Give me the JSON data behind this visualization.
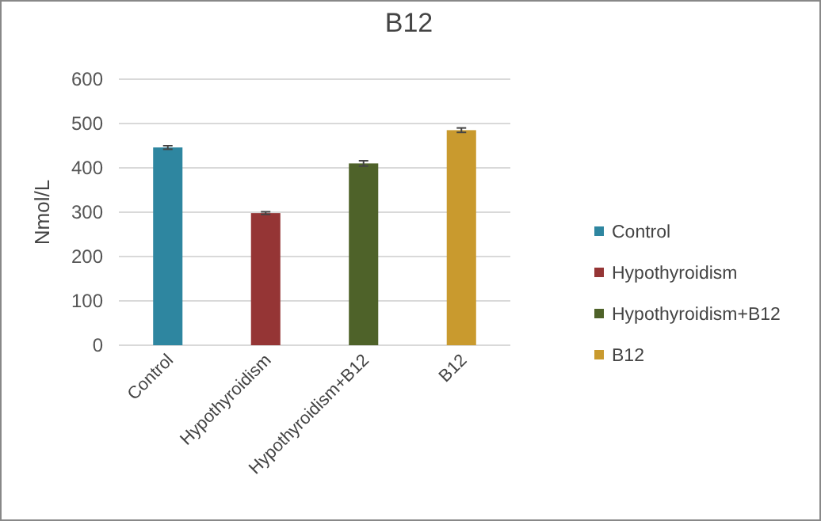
{
  "chart_data": {
    "type": "bar",
    "title": "B12",
    "ylabel": "Nmol/L",
    "categories": [
      "Control",
      "Hypothyroidism",
      "Hypothyroidism+B12",
      "B12"
    ],
    "series": [
      {
        "name": "Control",
        "color": "#2e86a0",
        "values": [
          446,
          null,
          null,
          null
        ],
        "errors": [
          4,
          null,
          null,
          null
        ]
      },
      {
        "name": "Hypothyroidism",
        "color": "#953535",
        "values": [
          null,
          298,
          null,
          null
        ],
        "errors": [
          null,
          3,
          null,
          null
        ]
      },
      {
        "name": "Hypothyroidism+B12",
        "color": "#4e6229",
        "values": [
          null,
          null,
          410,
          null
        ],
        "errors": [
          null,
          null,
          6,
          null
        ]
      },
      {
        "name": "B12",
        "color": "#c99a2e",
        "values": [
          null,
          null,
          null,
          485
        ],
        "errors": [
          null,
          null,
          null,
          5
        ]
      }
    ],
    "ylim": [
      0,
      600
    ],
    "yticks": [
      0,
      100,
      200,
      300,
      400,
      500,
      600
    ],
    "grid": "y",
    "legend": "right"
  }
}
